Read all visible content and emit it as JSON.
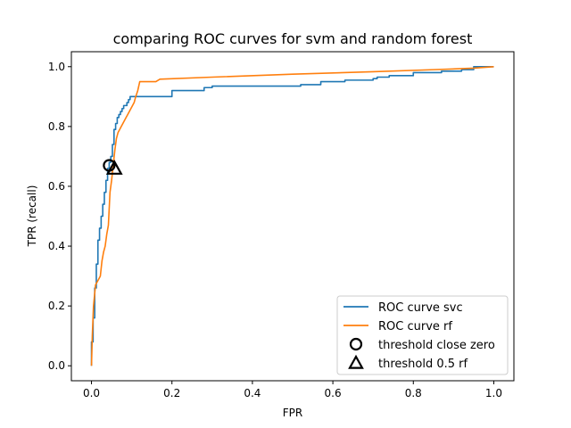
{
  "chart_data": {
    "type": "line",
    "title": "comparing ROC curves for svm and random forest",
    "xlabel": "FPR",
    "ylabel": "TPR (recall)",
    "xlim": [
      -0.05,
      1.05
    ],
    "ylim": [
      -0.05,
      1.05
    ],
    "x_ticks": [
      "0.0",
      "0.2",
      "0.4",
      "0.6",
      "0.8",
      "1.0"
    ],
    "y_ticks": [
      "0.0",
      "0.2",
      "0.4",
      "0.6",
      "0.8",
      "1.0"
    ],
    "grid": false,
    "legend_position": "lower-right",
    "series": [
      {
        "name": "ROC curve svc",
        "color": "#1f77b4",
        "x": [
          0.0,
          0.0,
          0.004,
          0.004,
          0.008,
          0.008,
          0.012,
          0.012,
          0.016,
          0.016,
          0.02,
          0.02,
          0.024,
          0.024,
          0.028,
          0.028,
          0.032,
          0.032,
          0.036,
          0.036,
          0.04,
          0.04,
          0.044,
          0.044,
          0.048,
          0.048,
          0.052,
          0.052,
          0.056,
          0.056,
          0.06,
          0.06,
          0.064,
          0.064,
          0.068,
          0.068,
          0.072,
          0.072,
          0.076,
          0.076,
          0.08,
          0.08,
          0.084,
          0.084,
          0.088,
          0.088,
          0.092,
          0.092,
          0.096,
          0.096,
          0.1,
          0.1,
          0.2,
          0.2,
          0.28,
          0.28,
          0.3,
          0.3,
          0.52,
          0.52,
          0.57,
          0.57,
          0.63,
          0.63,
          0.7,
          0.7,
          0.71,
          0.71,
          0.74,
          0.74,
          0.8,
          0.8,
          0.87,
          0.87,
          0.92,
          0.92,
          0.95,
          0.95,
          1.0
        ],
        "y": [
          0.0,
          0.08,
          0.08,
          0.16,
          0.16,
          0.26,
          0.26,
          0.34,
          0.34,
          0.42,
          0.42,
          0.46,
          0.46,
          0.5,
          0.5,
          0.54,
          0.54,
          0.58,
          0.58,
          0.62,
          0.62,
          0.66,
          0.66,
          0.68,
          0.68,
          0.7,
          0.7,
          0.74,
          0.74,
          0.79,
          0.79,
          0.81,
          0.81,
          0.83,
          0.83,
          0.84,
          0.84,
          0.85,
          0.85,
          0.86,
          0.86,
          0.87,
          0.87,
          0.87,
          0.87,
          0.88,
          0.88,
          0.89,
          0.89,
          0.9,
          0.9,
          0.9,
          0.9,
          0.92,
          0.92,
          0.93,
          0.93,
          0.935,
          0.935,
          0.94,
          0.94,
          0.95,
          0.95,
          0.955,
          0.955,
          0.96,
          0.96,
          0.965,
          0.965,
          0.97,
          0.97,
          0.98,
          0.98,
          0.985,
          0.985,
          0.99,
          0.99,
          1.0,
          1.0
        ]
      },
      {
        "name": "ROC curve rf",
        "color": "#ff7f0e",
        "x": [
          0.0,
          0.002,
          0.005,
          0.01,
          0.014,
          0.018,
          0.022,
          0.026,
          0.03,
          0.034,
          0.038,
          0.042,
          0.046,
          0.05,
          0.054,
          0.058,
          0.062,
          0.066,
          0.07,
          0.074,
          0.078,
          0.082,
          0.086,
          0.09,
          0.094,
          0.098,
          0.102,
          0.106,
          0.11,
          0.115,
          0.12,
          0.14,
          0.16,
          0.17,
          0.3,
          0.5,
          0.7,
          0.85,
          0.95,
          1.0
        ],
        "y": [
          0.0,
          0.1,
          0.2,
          0.27,
          0.28,
          0.29,
          0.3,
          0.35,
          0.38,
          0.4,
          0.44,
          0.47,
          0.58,
          0.62,
          0.67,
          0.72,
          0.76,
          0.78,
          0.79,
          0.8,
          0.81,
          0.82,
          0.83,
          0.84,
          0.85,
          0.86,
          0.87,
          0.88,
          0.9,
          0.92,
          0.95,
          0.95,
          0.95,
          0.958,
          0.965,
          0.975,
          0.983,
          0.99,
          0.995,
          1.0
        ]
      }
    ],
    "markers": [
      {
        "name": "threshold close zero",
        "shape": "circle",
        "x": 0.044,
        "y": 0.67
      },
      {
        "name": "threshold 0.5 rf",
        "shape": "triangle",
        "x": 0.057,
        "y": 0.66
      }
    ],
    "legend": [
      {
        "label": "ROC curve svc",
        "kind": "line",
        "color": "#1f77b4"
      },
      {
        "label": "ROC curve rf",
        "kind": "line",
        "color": "#ff7f0e"
      },
      {
        "label": "threshold close zero",
        "kind": "circle",
        "color": "#000000"
      },
      {
        "label": "threshold 0.5 rf",
        "kind": "triangle",
        "color": "#000000"
      }
    ]
  }
}
